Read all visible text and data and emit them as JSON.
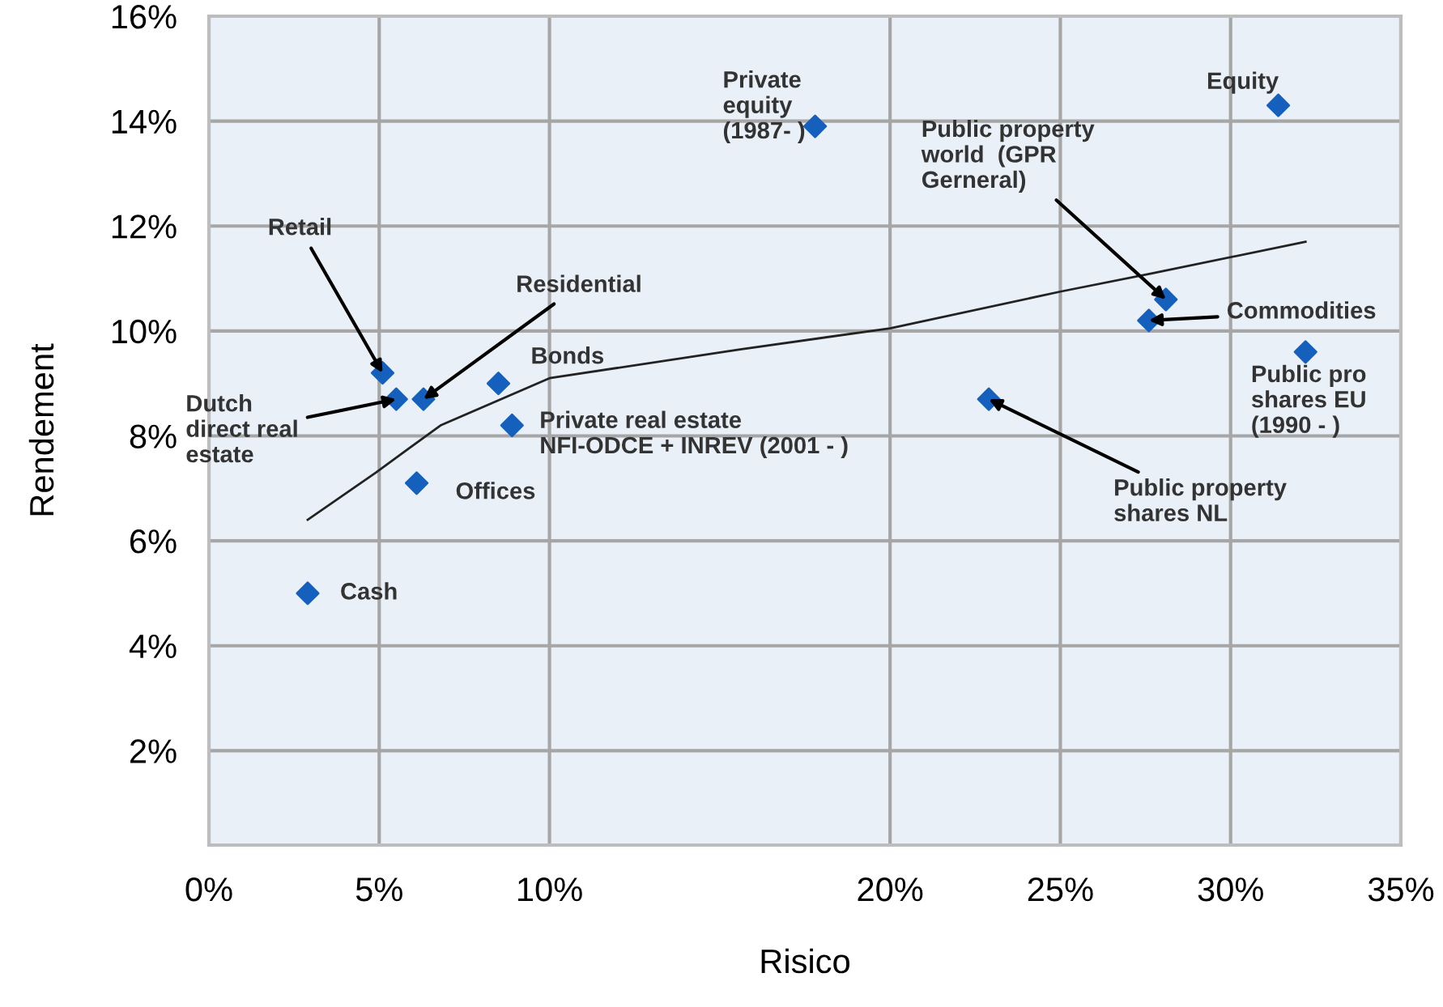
{
  "chart_data": {
    "type": "scatter",
    "xlabel": "Risico",
    "ylabel": "Rendement",
    "xlim": [
      0,
      35
    ],
    "ylim": [
      0.2,
      16
    ],
    "xticks": [
      {
        "value": 0,
        "label": "0%"
      },
      {
        "value": 5,
        "label": "5%"
      },
      {
        "value": 10,
        "label": "10%"
      },
      {
        "value": 20,
        "label": "20%"
      },
      {
        "value": 25,
        "label": "25%"
      },
      {
        "value": 30,
        "label": "30%"
      },
      {
        "value": 35,
        "label": "35%"
      }
    ],
    "yticks": [
      {
        "value": 2,
        "label": "2%"
      },
      {
        "value": 4,
        "label": "4%"
      },
      {
        "value": 6,
        "label": "6%"
      },
      {
        "value": 8,
        "label": "8%"
      },
      {
        "value": 10,
        "label": "10%"
      },
      {
        "value": 12,
        "label": "12%"
      },
      {
        "value": 14,
        "label": "14%"
      },
      {
        "value": 16,
        "label": "16%"
      }
    ],
    "grid": true,
    "marker": "diamond",
    "series": [
      {
        "color": "#1560bd",
        "x": [
          5.1,
          5.5,
          6.3,
          8.5,
          8.9,
          6.1,
          2.9,
          17.8,
          31.4,
          28.1,
          27.6,
          32.2,
          22.9
        ],
        "values": [
          9.2,
          8.7,
          8.7,
          9.0,
          8.2,
          7.1,
          5.0,
          13.9,
          14.3,
          10.6,
          10.2,
          9.6,
          8.7
        ]
      },
      {
        "type": "line",
        "color": "#222222",
        "marker": "none",
        "x": [
          2.9,
          4.9,
          6.8,
          10,
          15.6,
          20,
          25,
          27.7,
          32.2
        ],
        "values": [
          6.4,
          7.3,
          8.2,
          9.1,
          9.65,
          10.05,
          10.75,
          11.1,
          11.7
        ]
      }
    ],
    "annotations": [
      {
        "text": "Retail",
        "x": 5.1,
        "y": 9.2
      },
      {
        "text": "Dutch\ndirect real\nestate",
        "x": 5.5,
        "y": 8.7
      },
      {
        "text": "Residential",
        "x": 6.3,
        "y": 8.7
      },
      {
        "text": "Bonds",
        "x": 8.5,
        "y": 9.0
      },
      {
        "text": "Private real estate\nNFI-ODCE + INREV (2001 - )",
        "x": 8.9,
        "y": 8.2
      },
      {
        "text": "Offices",
        "x": 6.1,
        "y": 7.1
      },
      {
        "text": "Cash",
        "x": 2.9,
        "y": 5.0
      },
      {
        "text": "Private\nequity\n(1987- )",
        "x": 17.8,
        "y": 13.9
      },
      {
        "text": "Equity",
        "x": 31.4,
        "y": 14.3
      },
      {
        "text": "Public property\nworld  (GPR\nGerneral)",
        "x": 28.1,
        "y": 10.6
      },
      {
        "text": "Commodities",
        "x": 27.6,
        "y": 10.2
      },
      {
        "text": "Public pro\nshares EU\n(1990 - )",
        "x": 32.2,
        "y": 9.6
      },
      {
        "text": "Public property\nshares NL",
        "x": 22.9,
        "y": 8.7
      }
    ]
  }
}
